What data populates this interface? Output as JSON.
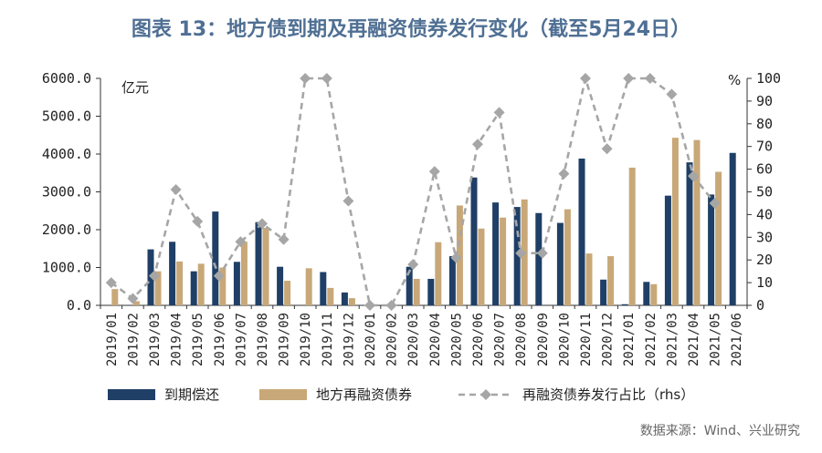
{
  "title": "图表 13：地方债到期及再融资债券发行变化（截至5月24日）",
  "source": "数据来源：Wind、兴业研究",
  "colors": {
    "title": "#4f6f93",
    "maturity": "#1f3f66",
    "refinancing": "#c8a878",
    "ratio": "#a6a6a6",
    "axis": "#333333"
  },
  "chart_data": {
    "type": "bar",
    "categories": [
      "2019/01",
      "2019/02",
      "2019/03",
      "2019/04",
      "2019/05",
      "2019/06",
      "2019/07",
      "2019/08",
      "2019/09",
      "2019/10",
      "2019/11",
      "2019/12",
      "2020/01",
      "2020/02",
      "2020/03",
      "2020/04",
      "2020/05",
      "2020/06",
      "2020/07",
      "2020/08",
      "2020/09",
      "2020/10",
      "2020/11",
      "2020/12",
      "2021/01",
      "2021/02",
      "2021/03",
      "2021/04",
      "2021/05",
      "2021/06"
    ],
    "left_axis": {
      "unit": "亿元",
      "ylim": [
        0,
        6000
      ],
      "ticks": [
        "0.0",
        "1000.0",
        "2000.0",
        "3000.0",
        "4000.0",
        "5000.0",
        "6000.0"
      ],
      "tick_values": [
        0,
        1000,
        2000,
        3000,
        4000,
        5000,
        6000
      ]
    },
    "right_axis": {
      "unit": "%",
      "ylim": [
        0,
        100
      ],
      "ticks": [
        "0",
        "10",
        "20",
        "30",
        "40",
        "50",
        "60",
        "70",
        "80",
        "90",
        "100"
      ],
      "tick_values": [
        0,
        10,
        20,
        30,
        40,
        50,
        60,
        70,
        80,
        90,
        100
      ]
    },
    "series": [
      {
        "name": "到期偿还",
        "type": "bar",
        "axis": "left",
        "values": [
          0,
          0,
          1480,
          1680,
          900,
          2480,
          1150,
          2200,
          1020,
          0,
          880,
          340,
          0,
          0,
          1020,
          700,
          1300,
          3380,
          2720,
          2600,
          2440,
          2180,
          3880,
          680,
          30,
          620,
          2900,
          3780,
          2930,
          4030
        ]
      },
      {
        "name": "地方再融资债券",
        "type": "bar",
        "axis": "left",
        "values": [
          430,
          110,
          900,
          1160,
          1100,
          1000,
          1680,
          2050,
          650,
          980,
          460,
          190,
          0,
          0,
          700,
          1670,
          2640,
          2030,
          2320,
          2800,
          0,
          2540,
          1370,
          1300,
          3640,
          560,
          4430,
          4370,
          3530,
          0
        ]
      },
      {
        "name": "再融资债券发行占比（rhs）",
        "type": "line",
        "axis": "right",
        "values": [
          10,
          3,
          13,
          51,
          37,
          13,
          28,
          36,
          29,
          100,
          100,
          46,
          0,
          0,
          18,
          59,
          21,
          71,
          85,
          23,
          23,
          58,
          100,
          69,
          100,
          100,
          93,
          57,
          45,
          null
        ]
      }
    ],
    "legend": {
      "position": "bottom"
    },
    "grid": false
  }
}
